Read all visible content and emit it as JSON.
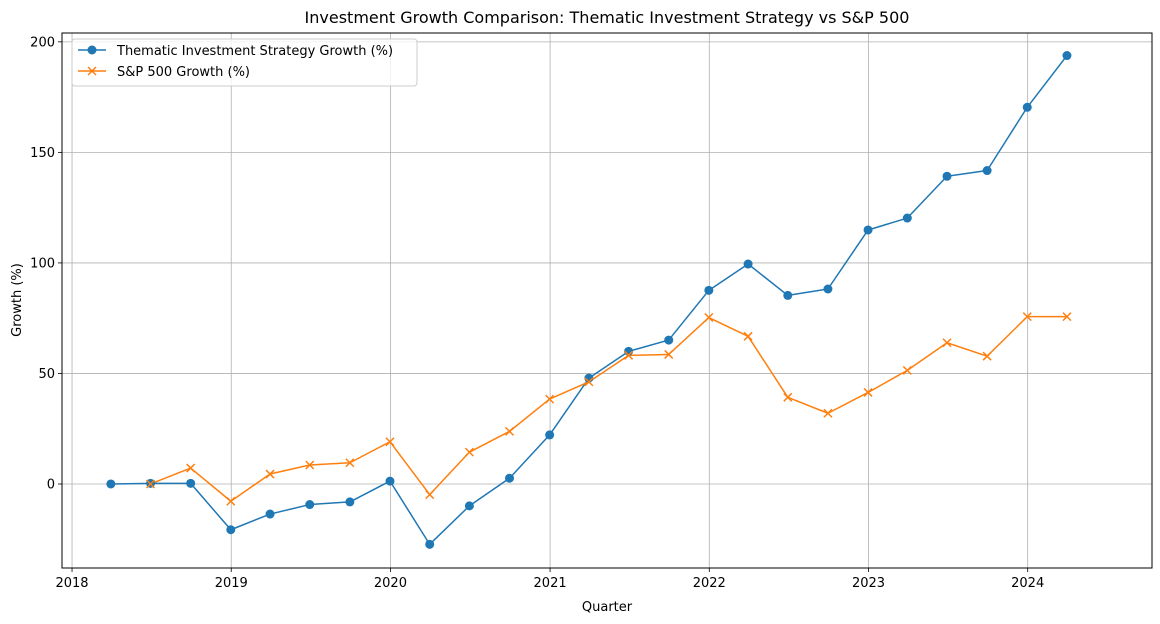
{
  "chart_data": {
    "type": "line",
    "title": "Investment Growth Comparison: Thematic Investment Strategy vs S&P 500",
    "xlabel": "Quarter",
    "ylabel": "Growth (%)",
    "x_ticks": [
      "2018",
      "2019",
      "2020",
      "2021",
      "2022",
      "2023",
      "2024"
    ],
    "y_ticks": [
      "0",
      "50",
      "100",
      "150",
      "200"
    ],
    "xlim": [
      "2017-12-09",
      "2024-10-12"
    ],
    "ylim": [
      -38,
      204
    ],
    "grid": true,
    "legend_position": "top-left",
    "series": [
      {
        "name": "Thematic Investment Strategy Growth (%)",
        "color": "#1f77b4",
        "marker": "circle",
        "points": [
          [
            "2018-03-31",
            0
          ],
          [
            "2018-06-30",
            0.3
          ],
          [
            "2018-09-30",
            0.3
          ],
          [
            "2018-12-31",
            -20.7
          ],
          [
            "2019-03-31",
            -13.6
          ],
          [
            "2019-06-30",
            -9.3
          ],
          [
            "2019-09-30",
            -8.1
          ],
          [
            "2019-12-31",
            1.3
          ],
          [
            "2020-03-31",
            -27.3
          ],
          [
            "2020-06-30",
            -9.9
          ],
          [
            "2020-09-30",
            2.6
          ],
          [
            "2020-12-31",
            22.2
          ],
          [
            "2021-03-31",
            47.9
          ],
          [
            "2021-06-30",
            60.0
          ],
          [
            "2021-09-30",
            65.1
          ],
          [
            "2021-12-31",
            87.6
          ],
          [
            "2022-03-31",
            99.5
          ],
          [
            "2022-06-30",
            85.3
          ],
          [
            "2022-09-30",
            88.2
          ],
          [
            "2022-12-31",
            114.9
          ],
          [
            "2023-03-31",
            120.3
          ],
          [
            "2023-06-30",
            139.2
          ],
          [
            "2023-09-30",
            141.8
          ],
          [
            "2023-12-31",
            170.4
          ],
          [
            "2024-03-31",
            193.8
          ]
        ]
      },
      {
        "name": "S&P 500 Growth (%)",
        "color": "#ff7f0e",
        "marker": "x",
        "points": [
          [
            "2018-06-30",
            0
          ],
          [
            "2018-09-30",
            7.2
          ],
          [
            "2018-12-31",
            -7.8
          ],
          [
            "2019-03-31",
            4.5
          ],
          [
            "2019-06-30",
            8.6
          ],
          [
            "2019-09-30",
            9.6
          ],
          [
            "2019-12-31",
            19.1
          ],
          [
            "2020-03-31",
            -4.8
          ],
          [
            "2020-06-30",
            14.4
          ],
          [
            "2020-09-30",
            23.8
          ],
          [
            "2020-12-31",
            38.4
          ],
          [
            "2021-03-31",
            46.2
          ],
          [
            "2021-06-30",
            58.2
          ],
          [
            "2021-09-30",
            58.6
          ],
          [
            "2021-12-31",
            75.3
          ],
          [
            "2022-03-31",
            66.8
          ],
          [
            "2022-06-30",
            39.2
          ],
          [
            "2022-09-30",
            32.0
          ],
          [
            "2022-12-31",
            41.4
          ],
          [
            "2023-03-31",
            51.4
          ],
          [
            "2023-06-30",
            63.9
          ],
          [
            "2023-09-30",
            57.8
          ],
          [
            "2023-12-31",
            75.7
          ],
          [
            "2024-03-31",
            75.7
          ]
        ]
      }
    ]
  }
}
